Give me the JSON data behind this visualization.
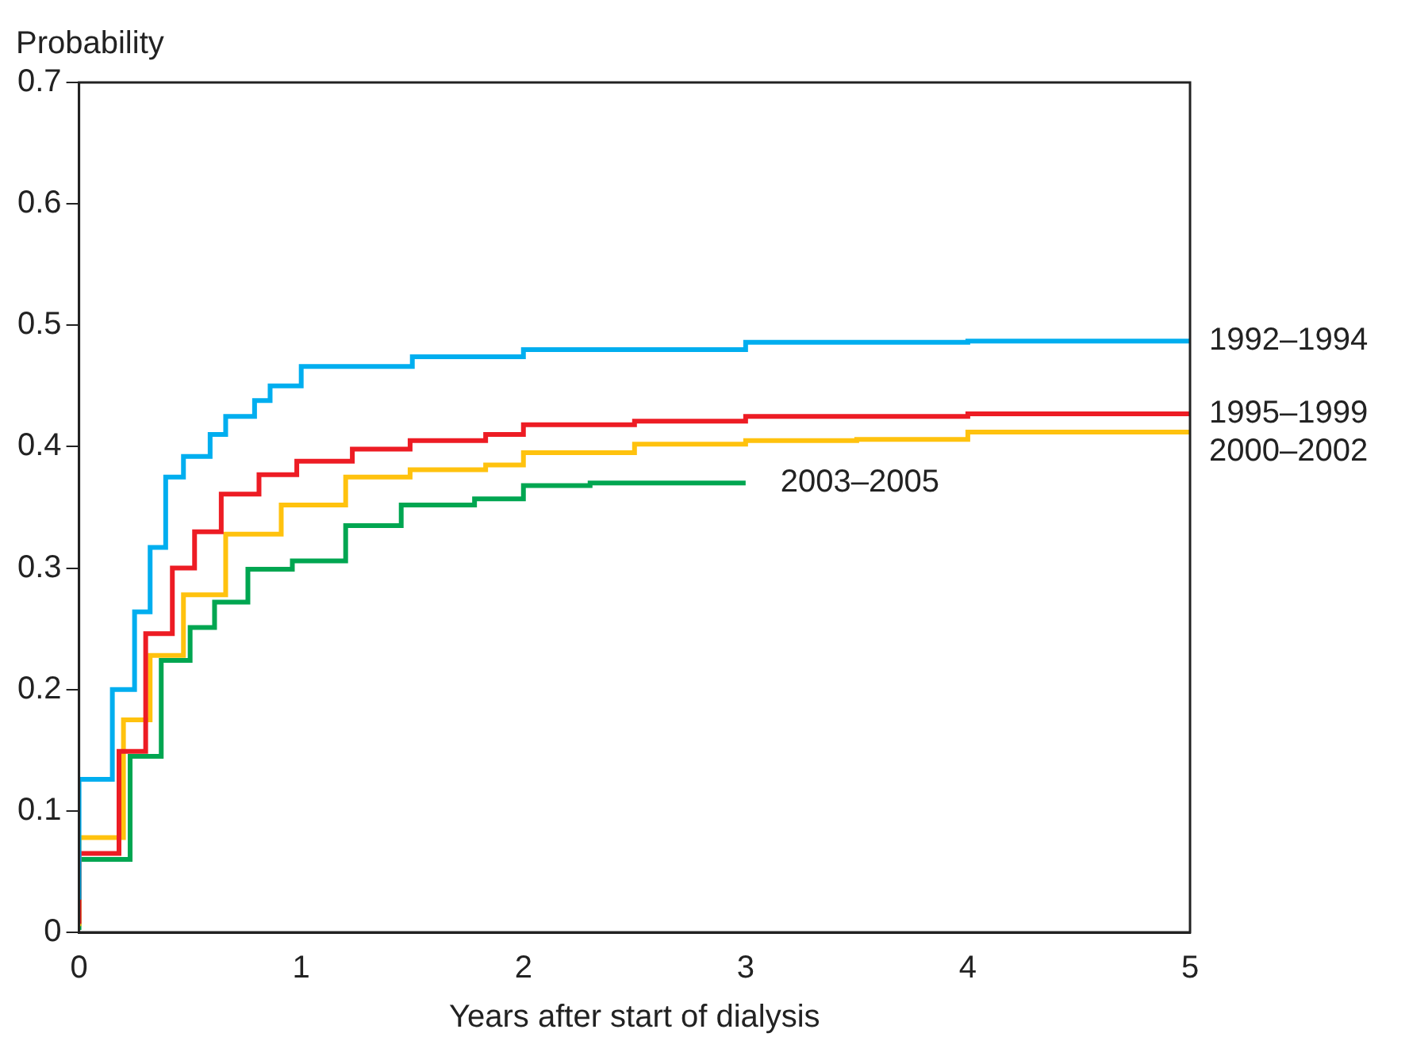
{
  "chart_data": {
    "type": "step",
    "ylabel": "Probability",
    "xlabel": "Years after start of dialysis",
    "xlim": [
      0,
      5
    ],
    "xticks": [
      0,
      1,
      2,
      3,
      4,
      5
    ],
    "ylim": [
      0,
      0.7
    ],
    "yticks": [
      0,
      0.1,
      0.2,
      0.3,
      0.4,
      0.5,
      0.6,
      0.7
    ],
    "grid": false,
    "legend": false,
    "series": [
      {
        "name": "1992–1994",
        "color": "#00aeef",
        "x": [
          0,
          0.15,
          0.25,
          0.32,
          0.39,
          0.47,
          0.59,
          0.66,
          0.79,
          0.86,
          1.0,
          1.5,
          2,
          3,
          4,
          5
        ],
        "values": [
          0.027,
          0.126,
          0.2,
          0.264,
          0.317,
          0.375,
          0.392,
          0.41,
          0.425,
          0.438,
          0.45,
          0.466,
          0.474,
          0.48,
          0.486,
          0.487
        ]
      },
      {
        "name": "1995–1999",
        "color": "#ed1c24",
        "x": [
          0,
          0.18,
          0.3,
          0.42,
          0.52,
          0.64,
          0.81,
          0.98,
          1.23,
          1.49,
          1.83,
          2,
          2.5,
          3,
          4,
          5
        ],
        "values": [
          0.007,
          0.065,
          0.149,
          0.246,
          0.3,
          0.33,
          0.361,
          0.377,
          0.388,
          0.398,
          0.405,
          0.41,
          0.418,
          0.421,
          0.425,
          0.427
        ]
      },
      {
        "name": "2000–2002",
        "color": "#ffc20e",
        "x": [
          0,
          0.2,
          0.32,
          0.47,
          0.66,
          0.91,
          1.2,
          1.49,
          1.83,
          2,
          2.5,
          3,
          3.5,
          4,
          4.3,
          5
        ],
        "values": [
          0.005,
          0.078,
          0.175,
          0.228,
          0.278,
          0.328,
          0.352,
          0.375,
          0.381,
          0.385,
          0.395,
          0.402,
          0.405,
          0.406,
          0.412,
          0.412
        ]
      },
      {
        "name": "2003–2005",
        "color": "#00a651",
        "x": [
          0,
          0.23,
          0.37,
          0.5,
          0.61,
          0.76,
          0.96,
          1.2,
          1.45,
          1.78,
          2,
          2.3,
          3
        ],
        "values": [
          0.002,
          0.06,
          0.145,
          0.224,
          0.251,
          0.272,
          0.299,
          0.306,
          0.335,
          0.352,
          0.357,
          0.368,
          0.37
        ]
      }
    ]
  }
}
